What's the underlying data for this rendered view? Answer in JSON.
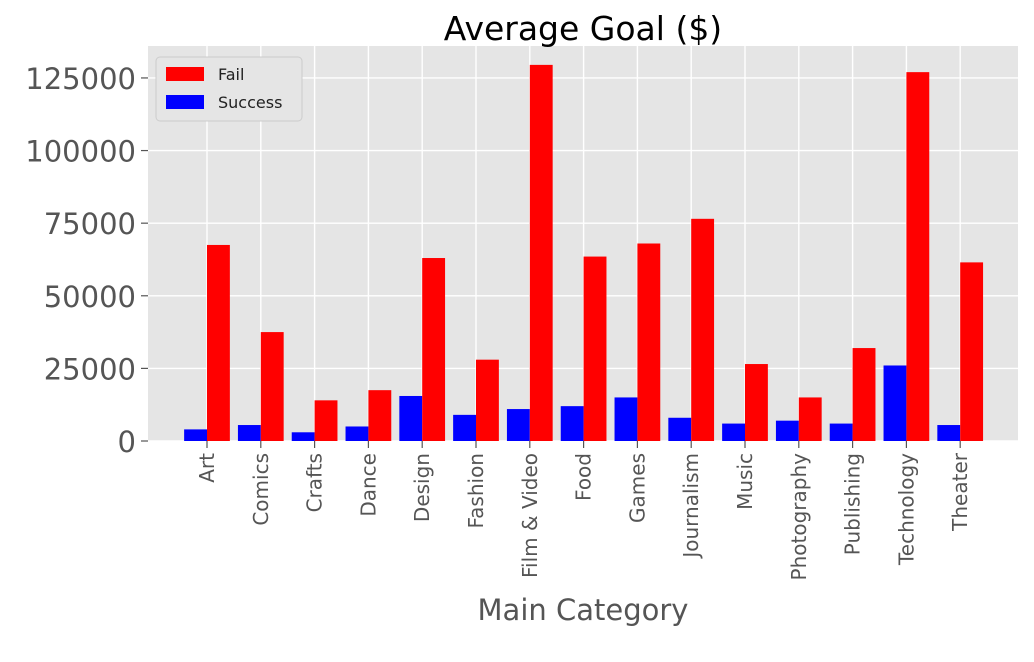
{
  "chart_data": {
    "type": "bar",
    "title": "Average Goal ($)",
    "xlabel": "Main Category",
    "ylabel": "",
    "categories": [
      "Art",
      "Comics",
      "Crafts",
      "Dance",
      "Design",
      "Fashion",
      "Film & Video",
      "Food",
      "Games",
      "Journalism",
      "Music",
      "Photography",
      "Publishing",
      "Technology",
      "Theater"
    ],
    "series": [
      {
        "name": "Success",
        "color": "#0000ff",
        "values": [
          4000,
          5500,
          3000,
          5000,
          15500,
          9000,
          11000,
          12000,
          15000,
          8000,
          6000,
          7000,
          6000,
          26000,
          5500
        ]
      },
      {
        "name": "Fail",
        "color": "#ff0000",
        "values": [
          67500,
          37500,
          14000,
          17500,
          63000,
          28000,
          129500,
          63500,
          68000,
          76500,
          26500,
          15000,
          32000,
          127000,
          61500
        ]
      }
    ],
    "legend_order": [
      "Fail",
      "Success"
    ],
    "yticks": [
      0,
      25000,
      50000,
      75000,
      100000,
      125000
    ],
    "ylim": [
      0,
      136000
    ],
    "grid": true,
    "legend_position": "top-left",
    "background": "#e5e5e5",
    "grid_color": "#ffffff"
  }
}
